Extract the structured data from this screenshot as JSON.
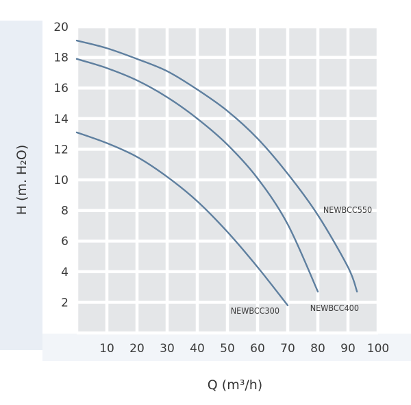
{
  "chart_data": {
    "type": "line",
    "xlabel": "Q (m³/h)",
    "ylabel": "H (m. H₂O)",
    "xlim": [
      0,
      100
    ],
    "ylim": [
      0,
      20
    ],
    "x_ticks": [
      "10",
      "20",
      "30",
      "40",
      "50",
      "60",
      "70",
      "80",
      "90",
      "100"
    ],
    "y_ticks": [
      "2",
      "4",
      "6",
      "8",
      "10",
      "12",
      "14",
      "16",
      "18",
      "20"
    ],
    "grid": true,
    "series": [
      {
        "name": "NEWBCC300",
        "x": [
          0,
          10,
          20,
          30,
          40,
          50,
          60,
          70
        ],
        "y": [
          13.1,
          12.4,
          11.5,
          10.2,
          8.6,
          6.6,
          4.3,
          1.8
        ]
      },
      {
        "name": "NEWBCC400",
        "x": [
          0,
          10,
          20,
          30,
          40,
          50,
          60,
          70,
          80
        ],
        "y": [
          17.9,
          17.3,
          16.5,
          15.4,
          14.0,
          12.3,
          10.1,
          7.1,
          2.7
        ]
      },
      {
        "name": "NEWBCC550",
        "x": [
          0,
          10,
          20,
          30,
          40,
          50,
          60,
          70,
          80,
          90,
          93
        ],
        "y": [
          19.1,
          18.6,
          17.9,
          17.1,
          15.9,
          14.5,
          12.7,
          10.4,
          7.7,
          4.3,
          2.7
        ]
      }
    ],
    "colors": {
      "line": "#5e7f9f",
      "cell": "#e4e6e8",
      "grid": "#ffffff",
      "backdrop": "#e6ecf3"
    }
  }
}
